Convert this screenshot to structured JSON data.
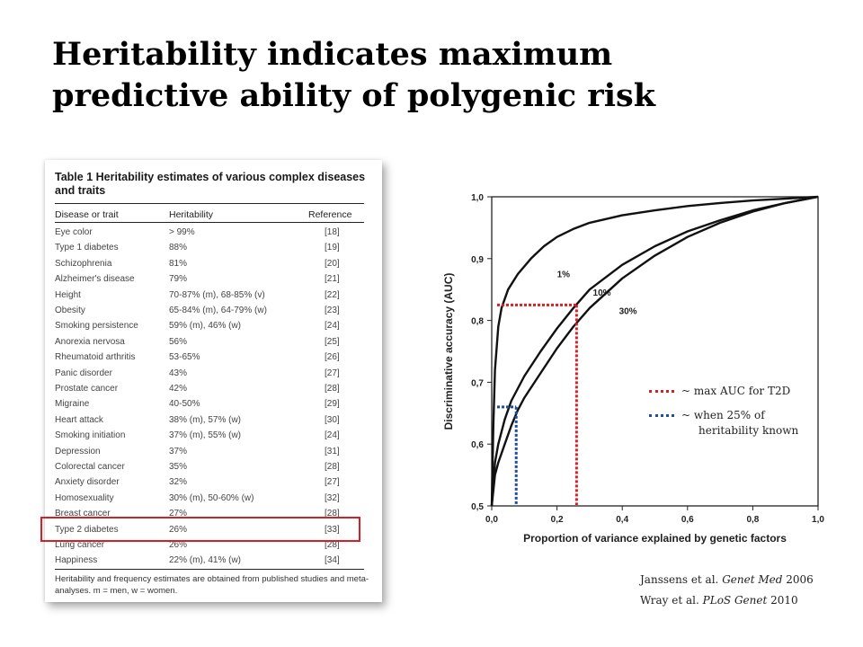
{
  "title": {
    "line1": "Heritability indicates maximum",
    "line2": "predictive ability of polygenic risk"
  },
  "table": {
    "caption_bold": "Table 1",
    "caption_text": "Heritability estimates of various complex diseases and traits",
    "headers": [
      "Disease or trait",
      "Heritability",
      "Reference"
    ],
    "rows": [
      [
        "Eye color",
        "> 99%",
        "[18]"
      ],
      [
        "Type 1 diabetes",
        "88%",
        "[19]"
      ],
      [
        "Schizophrenia",
        "81%",
        "[20]"
      ],
      [
        "Alzheimer's disease",
        "79%",
        "[21]"
      ],
      [
        "Height",
        "70-87% (m), 68-85% (v)",
        "[22]"
      ],
      [
        "Obesity",
        "65-84% (m), 64-79% (w)",
        "[23]"
      ],
      [
        "Smoking persistence",
        "59% (m), 46% (w)",
        "[24]"
      ],
      [
        "Anorexia nervosa",
        "56%",
        "[25]"
      ],
      [
        "Rheumatoid arthritis",
        "53-65%",
        "[26]"
      ],
      [
        "Panic disorder",
        "43%",
        "[27]"
      ],
      [
        "Prostate cancer",
        "42%",
        "[28]"
      ],
      [
        "Migraine",
        "40-50%",
        "[29]"
      ],
      [
        "Heart attack",
        "38% (m), 57% (w)",
        "[30]"
      ],
      [
        "Smoking initiation",
        "37% (m), 55% (w)",
        "[24]"
      ],
      [
        "Depression",
        "37%",
        "[31]"
      ],
      [
        "Colorectal cancer",
        "35%",
        "[28]"
      ],
      [
        "Anxiety disorder",
        "32%",
        "[27]"
      ],
      [
        "Homosexuality",
        "30% (m), 50-60% (w)",
        "[32]"
      ],
      [
        "Breast cancer",
        "27%",
        "[28]"
      ],
      [
        "Type 2 diabetes",
        "26%",
        "[33]"
      ],
      [
        "Lung cancer",
        "26%",
        "[28]"
      ],
      [
        "Happiness",
        "22% (m), 41% (w)",
        "[34]"
      ]
    ],
    "footnote": "Heritability and frequency estimates are obtained from published studies and meta-analyses. m = men, w = women.",
    "highlight_color": "#d42027"
  },
  "chart_data": {
    "type": "line",
    "xlabel": "Proportion of variance explained by genetic factors",
    "ylabel": "Discriminative accuracy (AUC)",
    "xlim": [
      0,
      1
    ],
    "ylim": [
      0.5,
      1
    ],
    "x_ticks": [
      "0,0",
      "0,2",
      "0,4",
      "0,6",
      "0,8",
      "1,0"
    ],
    "y_ticks": [
      "0,5",
      "0,6",
      "0,7",
      "0,8",
      "0,9",
      "1,0"
    ],
    "series": [
      {
        "name": "1%",
        "x": [
          0,
          0.005,
          0.01,
          0.02,
          0.03,
          0.05,
          0.08,
          0.12,
          0.16,
          0.2,
          0.25,
          0.3,
          0.4,
          0.5,
          0.6,
          0.7,
          0.8,
          0.9,
          1.0
        ],
        "y": [
          0.5,
          0.63,
          0.72,
          0.79,
          0.82,
          0.85,
          0.875,
          0.9,
          0.92,
          0.935,
          0.948,
          0.958,
          0.97,
          0.978,
          0.985,
          0.99,
          0.994,
          0.997,
          1.0
        ]
      },
      {
        "name": "10%",
        "x": [
          0,
          0.01,
          0.02,
          0.04,
          0.06,
          0.1,
          0.15,
          0.2,
          0.25,
          0.3,
          0.4,
          0.5,
          0.6,
          0.7,
          0.8,
          0.9,
          1.0
        ],
        "y": [
          0.5,
          0.57,
          0.6,
          0.64,
          0.67,
          0.71,
          0.75,
          0.787,
          0.82,
          0.85,
          0.89,
          0.92,
          0.944,
          0.962,
          0.978,
          0.99,
          1.0
        ]
      },
      {
        "name": "30%",
        "x": [
          0,
          0.01,
          0.02,
          0.04,
          0.06,
          0.08,
          0.1,
          0.15,
          0.2,
          0.25,
          0.3,
          0.4,
          0.5,
          0.6,
          0.7,
          0.8,
          0.9,
          1.0
        ],
        "y": [
          0.5,
          0.55,
          0.57,
          0.6,
          0.63,
          0.655,
          0.675,
          0.715,
          0.755,
          0.79,
          0.82,
          0.868,
          0.905,
          0.935,
          0.958,
          0.976,
          0.99,
          1.0
        ]
      }
    ],
    "annotations": [
      {
        "color": "#d42027",
        "x": 0.26,
        "y": 0.825
      },
      {
        "color": "#1f4e9c",
        "x": 0.075,
        "y": 0.66
      }
    ]
  },
  "legend": {
    "red_text": "~ max AUC for T2D",
    "blue_text_line1": "~ when 25% of",
    "blue_text_line2": "heritability known",
    "red_color": "#d42027",
    "blue_color": "#1f4e9c"
  },
  "citations": [
    {
      "authors": "Janssens et al.",
      "journal": "Genet Med",
      "year": "2006"
    },
    {
      "authors": "Wray et al.",
      "journal": "PLoS Genet",
      "year": "2010"
    }
  ]
}
